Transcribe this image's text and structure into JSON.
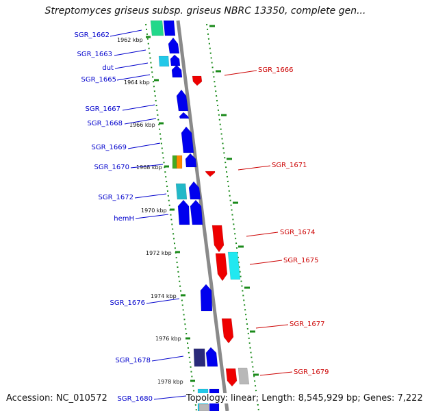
{
  "title": "Streptomyces griseus subsp. griseus NBRC 13350, complete gen...",
  "footer": {
    "accession": "Accession: NC_010572",
    "topology": "Topology: linear; Length: 8,545,929 bp; Genes: 7,222"
  },
  "colors": {
    "forward_strand": "#0000ee",
    "reverse_strand": "#ee0000",
    "backbone": "#8a8a8a",
    "tick": "#1a8a1a"
  },
  "kbp_ticks": [
    "1962 kbp",
    "1964 kbp",
    "1966 kbp",
    "1968 kbp",
    "1970 kbp",
    "1972 kbp",
    "1974 kbp",
    "1976 kbp",
    "1978 kbp"
  ],
  "forward_gene_labels": [
    "SGR_1662",
    "SGR_1663",
    "dut",
    "SGR_1665",
    "SGR_1667",
    "SGR_1668",
    "SGR_1669",
    "SGR_1670",
    "SGR_1672",
    "hemH",
    "SGR_1676",
    "SGR_1678",
    "SGR_1680"
  ],
  "reverse_gene_labels": [
    "SGR_1666",
    "SGR_1671",
    "SGR_1674",
    "SGR_1675",
    "SGR_1677",
    "SGR_1679"
  ]
}
